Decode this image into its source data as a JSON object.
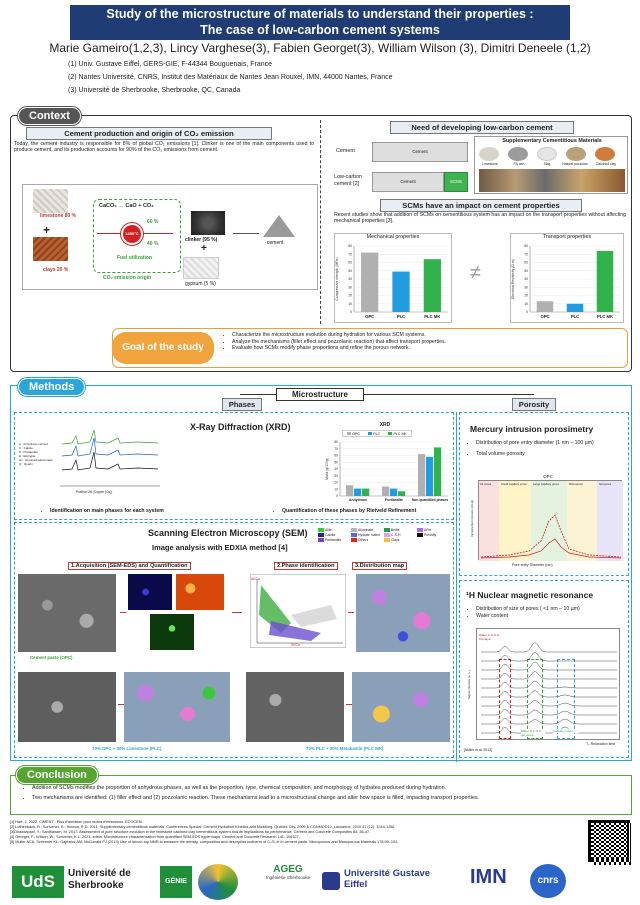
{
  "title": {
    "line1": "Study of the microstructure of materials to understand their properties :",
    "line2": "The case of low-carbon cement systems"
  },
  "authors": "Marie Gameiro(1,2,3), Lincy Varghese(3), Fabien Georget(3), William Wilson (3), Dimitri Deneele (1,2)",
  "affiliations": [
    "(1) Univ. Gustave Eiffel, GERS-GIE, F-44344 Bouguenais, France",
    "(2) Nantes Université, CNRS, Institut des Matériaux de Nantes Jean Rouxel, IMN, 44000 Nantes, France",
    "(3) Université de Sherbrooke, Sherbrooke, QC, Canada"
  ],
  "context": {
    "tag": "Context",
    "left_heading": "Cement production and origin of CO₂ emission",
    "left_text": "Today, the cement industry is responsible for 8% of global CO₂ emissions [1]. Clinker is one of the main components used to produce cement, and its production accounts for 90% of the CO₂ emissions from cement.",
    "diagram": {
      "limestone": "limestone 80 %",
      "clays": "clays 20 %",
      "reaction": "CaCO₃ → CaO + CO₂",
      "pct60a": "60 %",
      "temp": "1450°C",
      "pct40": "40 %",
      "fuel": "Fuel utilization",
      "co2origin": "CO₂ emission origin",
      "clinker": "clinker (95 %)",
      "gypsum": "gypsum (5 %)",
      "cement": "cement"
    },
    "right_heading": "Need of developing low-carbon cement",
    "cement_label": "Cement",
    "low_carbon_label": "Low-carbon cement [2]",
    "bar_cement": "Cement",
    "bar_lc_cement": "Cement",
    "bar_scms": "SCMs",
    "scm_title": "Supplementary Cementitious Materials",
    "scm_items": [
      "Limestone",
      "Fly ash",
      "Slag",
      "Natural pozzolan",
      "Calcined clay"
    ],
    "impact_heading": "SCMs have an impact on cement properties",
    "impact_text": "Recent studies show that addition of SCMs on cementitious system has an impact on the transport properties without affecting mechanical properties [3].",
    "goal_label": "Goal of the study",
    "goals": [
      "Characterize the microstructure evolution during hydration for various SCM systems.",
      "Analyze the mechanisms (filler effect and pozzolanic reaction) that affect transport properties.",
      "Evaluate how SCMs modify phase proportions and refine the porous network."
    ]
  },
  "chart_data": [
    {
      "type": "bar",
      "title": "Mechanical properties",
      "ylabel": "Compressive strength (MPa)",
      "categories": [
        "OPC",
        "PLC",
        "PLC MK"
      ],
      "values": [
        72,
        49,
        64
      ],
      "ylim": [
        0,
        80
      ],
      "yticks": [
        "0",
        "10",
        "20",
        "30",
        "40",
        "50",
        "60",
        "70",
        "80"
      ],
      "colors": [
        "#b0b0b0",
        "#1f9de0",
        "#2fb34a"
      ]
    },
    {
      "type": "bar",
      "title": "Transport properties",
      "ylabel": "Electrical Resistivity (Ω.m)",
      "categories": [
        "OPC",
        "PLC",
        "PLC MK"
      ],
      "values": [
        13,
        10,
        74
      ],
      "ylim": [
        0,
        80
      ],
      "yticks": [
        "0",
        "10",
        "20",
        "30",
        "40",
        "50",
        "60",
        "70",
        "80"
      ],
      "colors": [
        "#b0b0b0",
        "#1f9de0",
        "#2fb34a"
      ]
    },
    {
      "type": "bar",
      "title": "XRD",
      "ylabel": "Mass (g/100g)",
      "categories": [
        "Anhydrous",
        "Portlandite",
        "Non quantified phases"
      ],
      "series": [
        {
          "name": "OPC",
          "values": [
            16,
            14,
            62
          ]
        },
        {
          "name": "PLC",
          "values": [
            11,
            11,
            58
          ]
        },
        {
          "name": "PLC MK",
          "values": [
            11,
            7,
            72
          ]
        }
      ],
      "ylim": [
        0,
        80
      ],
      "yticks": [
        "0",
        "10",
        "20",
        "30",
        "40",
        "50",
        "60",
        "70",
        "80"
      ]
    }
  ],
  "methods": {
    "tag": "Methods",
    "microstructure": "Microstructure",
    "phases": "Phases",
    "porosity": "Porosity",
    "xrd_heading": "X-Ray Diffraction (XRD)",
    "xrd_legend": [
      "A : Anhydrous cement",
      "C : Calcite",
      "P : Portlandite",
      "E : Ettringite",
      "Hc : Hemicarboaluminate",
      "Q : Quartz"
    ],
    "xrd_xlabel": "Position 2θ (Copper (Cu))",
    "xrd_id": "Identification on main phases for each system",
    "xrd_quant": "Quantification of these phases by Rietveld Refinement",
    "sem_heading": "Scanning Electron Microscopy (SEM)",
    "sem_sub": "Image analysis with EDXIA method [4]",
    "sem_legend": [
      "Alite",
      "Aluminate",
      "Belite",
      "AFm",
      "Calcite",
      "Hydrate matrix",
      "C-S-H",
      "Porosity",
      "Portlandite",
      "Others",
      "Clays"
    ],
    "sem_step1": "1.Acquisition (SEM-EDS) and Quantification",
    "sem_step2": "2.Phase identification",
    "sem_step3": "3.Distribution map",
    "sem_cap1": "Cement paste (OPC)",
    "sem_cap2": "70% OPC + 30% Limestone (PLC)",
    "sem_cap3": "70% PLC + 30% Metakaolin (PLC MK)",
    "phase_axis_x": "Si/Ca",
    "phase_axis_y": "Al/Ca",
    "mip_heading": "Mercury intrusion porosimetry",
    "mip_bullets": [
      "Distribution of pore entry diameter (1 nm – 100 µm)",
      "Total volume porosity"
    ],
    "mip_chart_title": "OPC",
    "mip_regions": [
      "Air pores",
      "Small capillary pores",
      "Large capillary pores",
      "Micropores",
      "Gel pores"
    ],
    "mip_xlabel": "Pore entry Diameter (nm)",
    "mip_ylabel": "Incremental intrusion (mL/g)",
    "nmr_heading": "¹H Nuclear magnetic resonance",
    "nmr_bullets": [
      "Distribution of size of pores ( <1 nm – 10 µm)",
      "Water content"
    ],
    "nmr_labels": [
      "Water in C-S-H interlayer",
      "Water in C-S-H gel pores",
      "Capillary water"
    ],
    "nmr_xlabel": "T₂ Relaxation time",
    "nmr_ylabel": "Signal intensity (a. u.)",
    "nmr_ref": "[Muller et al. 2013]"
  },
  "conclusion": {
    "tag": "Conclusion",
    "bullets": [
      "Addition of SCMs modifies the proportion of anhydrous phases, as well as the proportion, type, chemical composition, and morphology of hydrates produced during hydration.",
      "Two mechanisms are identified: (1) filler effect and (2) pozzolanic reaction. These mechanisms lead to a microstructural change and alter how space is filled, impacting transport properties."
    ]
  },
  "references": [
    "[1] Hart, J. 2022. CIMENT : Plus d'ambition pour moins d'émissions. ECOCEM.",
    "[2] Lothenbach, B.; Scrivener, K.; Hooton, R.D. 2011. Supplementary cementitious materials. Conferences Special: Cement Hydration Kinetics and Modeling, Quebec City, 2009 & CONMOD10, Lausanne, 2010 41 (12): 1244-1256.",
    "[3]Dhandapani, Y.; Santhanam, M. 2017. Assessment of pore structure evolution in the limestone calcined clay cementitious system and its implications for performance. Cement and Concrete Composites 84: 36-47.",
    "[4] Georget, F.; Wilson, W.; Scrivener, K.L. 2021. edxia: Microstructure characterisation from quantified SEM-EDS hypermaps. Cement and Concrete Research 141: 106327.",
    "[5] Muller ACA, Scrivener KL, Gajewicz AM, McDonald PJ (2013) Use of bench-top NMR to measure the density, composition and desorption isotherm of C–S–H in cement paste. Microporous and Mesoporous Materials 178:99–103."
  ],
  "logos": {
    "uds": "UdS",
    "sherbrooke": "Université de Sherbrooke",
    "genie": "GÉNIE",
    "ageg": "AGEG",
    "ageg_sub": "Ingénierie Sherbrooke",
    "eiffel": "Université Gustave Eiffel",
    "imn": "IMN",
    "cnrs": "cnrs"
  }
}
